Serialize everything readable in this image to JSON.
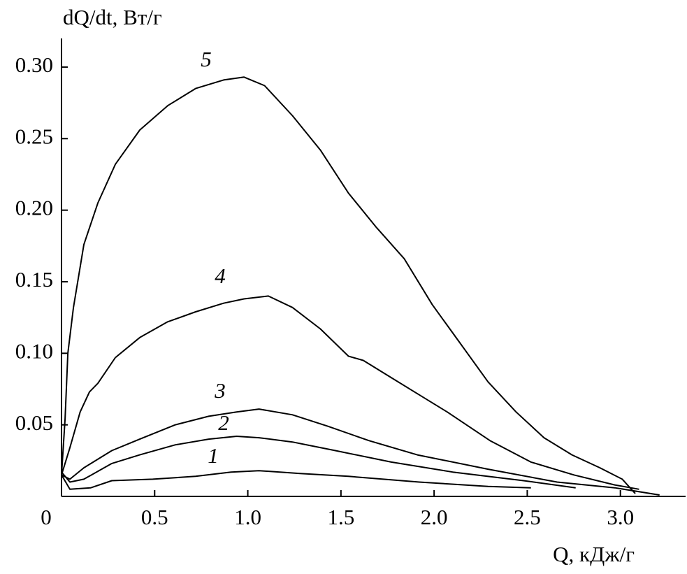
{
  "chart_data": {
    "type": "line",
    "x_label": "Q, кДж/г",
    "y_label": "dQ/dt, Вт/г",
    "xlim": [
      0,
      3.35
    ],
    "ylim": [
      0,
      0.32
    ],
    "xticks": [
      0,
      0.5,
      {
        "value": 1,
        "label": "1.0"
      },
      1.5,
      {
        "value": 2,
        "label": "2.0"
      },
      2.5,
      {
        "value": 3,
        "label": "3.0"
      }
    ],
    "yticks": [
      0.05,
      {
        "value": 0.1,
        "label": "0.10"
      },
      0.15,
      {
        "value": 0.2,
        "label": "0.20"
      },
      0.25,
      {
        "value": 0.3,
        "label": "0.30"
      }
    ],
    "series": [
      {
        "name": "1",
        "color": "#000000",
        "x": [
          0,
          0.045,
          0.157,
          0.27,
          0.49,
          0.72,
          0.91,
          1.06,
          1.28,
          1.54,
          1.92,
          2.29,
          2.52
        ],
        "values": [
          0.015,
          0.005,
          0.006,
          0.011,
          0.012,
          0.014,
          0.017,
          0.018,
          0.016,
          0.014,
          0.01,
          0.007,
          0.006
        ]
      },
      {
        "name": "2",
        "color": "#000000",
        "x": [
          0,
          0.045,
          0.12,
          0.27,
          0.42,
          0.61,
          0.79,
          0.94,
          1.06,
          1.24,
          1.47,
          1.77,
          2.1,
          2.48,
          2.76
        ],
        "values": [
          0.017,
          0.01,
          0.012,
          0.023,
          0.029,
          0.036,
          0.04,
          0.042,
          0.041,
          0.038,
          0.032,
          0.024,
          0.017,
          0.011,
          0.006
        ]
      },
      {
        "name": "3",
        "color": "#000000",
        "x": [
          0,
          0.045,
          0.12,
          0.27,
          0.42,
          0.61,
          0.79,
          0.94,
          1.06,
          1.24,
          1.43,
          1.65,
          1.91,
          2.29,
          2.66,
          2.97,
          3.21
        ],
        "values": [
          0.015,
          0.012,
          0.02,
          0.032,
          0.04,
          0.05,
          0.056,
          0.059,
          0.061,
          0.057,
          0.049,
          0.039,
          0.029,
          0.019,
          0.01,
          0.006,
          0.001
        ]
      },
      {
        "name": "4",
        "color": "#000000",
        "x": [
          0,
          0.045,
          0.1,
          0.15,
          0.195,
          0.289,
          0.42,
          0.57,
          0.72,
          0.87,
          0.98,
          1.11,
          1.24,
          1.39,
          1.54,
          1.62,
          1.77,
          1.92,
          2.07,
          2.3,
          2.52,
          2.75,
          2.97,
          3.1
        ],
        "values": [
          0.015,
          0.034,
          0.059,
          0.073,
          0.079,
          0.097,
          0.111,
          0.122,
          0.129,
          0.135,
          0.138,
          0.14,
          0.132,
          0.117,
          0.098,
          0.095,
          0.083,
          0.071,
          0.059,
          0.039,
          0.024,
          0.015,
          0.008,
          0.005
        ]
      },
      {
        "name": "5",
        "color": "#000000",
        "x": [
          0,
          0.019,
          0.034,
          0.064,
          0.12,
          0.195,
          0.289,
          0.42,
          0.57,
          0.72,
          0.87,
          0.98,
          1.09,
          1.24,
          1.39,
          1.54,
          1.69,
          1.84,
          1.99,
          2.14,
          2.29,
          2.44,
          2.59,
          2.74,
          2.89,
          3.01,
          3.08
        ],
        "values": [
          0.015,
          0.054,
          0.1,
          0.132,
          0.176,
          0.205,
          0.232,
          0.256,
          0.273,
          0.285,
          0.291,
          0.293,
          0.287,
          0.266,
          0.242,
          0.212,
          0.188,
          0.166,
          0.134,
          0.107,
          0.08,
          0.059,
          0.041,
          0.029,
          0.02,
          0.012,
          0.002
        ]
      }
    ]
  }
}
